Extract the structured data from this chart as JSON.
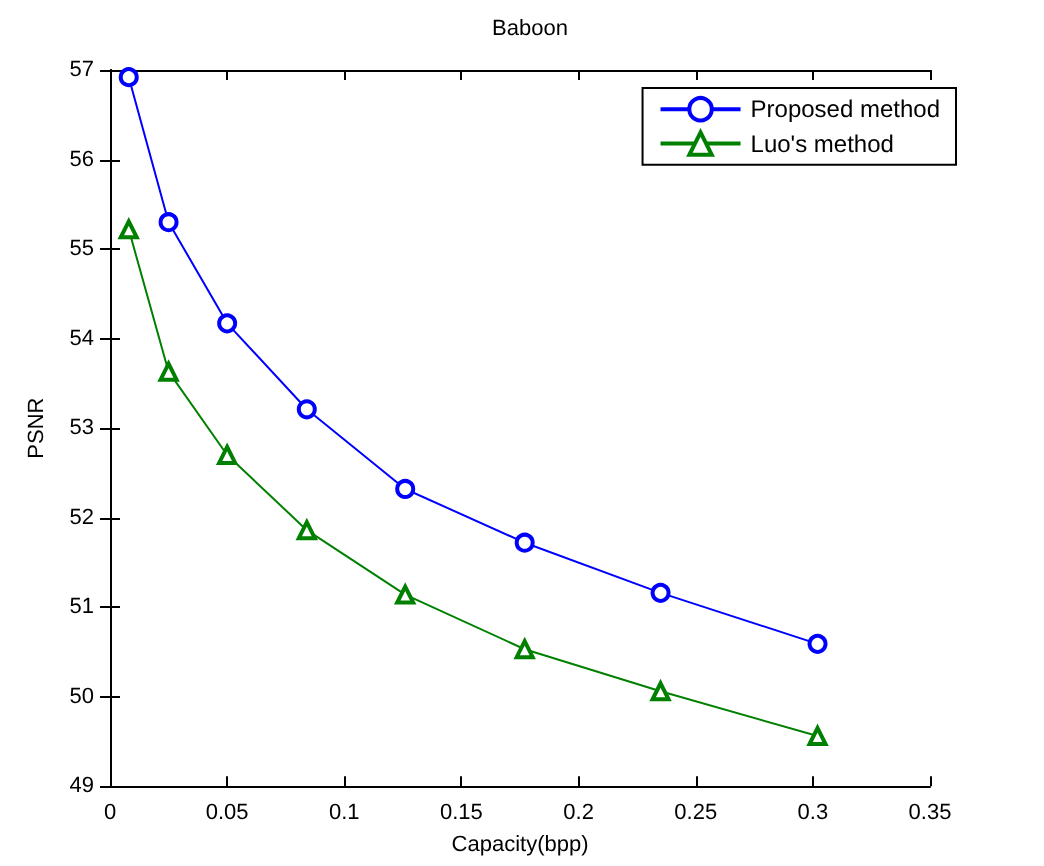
{
  "chart_data": {
    "type": "line",
    "title": "Baboon",
    "xlabel": "Capacity(bpp)",
    "ylabel": "PSNR",
    "xlim": [
      0,
      0.35
    ],
    "xticks": [
      0,
      0.05,
      0.1,
      0.15,
      0.2,
      0.25,
      0.3,
      0.35
    ],
    "ylim": [
      49,
      57
    ],
    "yticks": [
      49,
      50,
      51,
      52,
      53,
      54,
      55,
      56,
      57
    ],
    "grid": false,
    "legend": "top right",
    "line_style": "solid",
    "series": [
      {
        "name": "Proposed method",
        "color": "#0000ff",
        "marker": "circle",
        "x": [
          0.008,
          0.025,
          0.05,
          0.084,
          0.126,
          0.177,
          0.235,
          0.302
        ],
        "values": [
          56.92,
          55.3,
          54.17,
          53.21,
          52.32,
          51.72,
          51.16,
          50.59
        ]
      },
      {
        "name": "Luo's method",
        "color": "#008000",
        "marker": "triangle",
        "x": [
          0.008,
          0.025,
          0.05,
          0.084,
          0.126,
          0.177,
          0.235,
          0.302
        ],
        "values": [
          55.22,
          53.63,
          52.7,
          51.86,
          51.14,
          50.53,
          50.06,
          49.56
        ]
      }
    ]
  }
}
